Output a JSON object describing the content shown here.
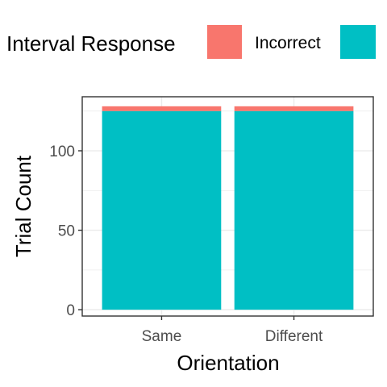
{
  "chart_data": {
    "type": "bar",
    "stacked": true,
    "categories": [
      "Same",
      "Different"
    ],
    "series": [
      {
        "name": "Incorrect",
        "values": [
          3,
          3
        ],
        "color": "#F8766D"
      },
      {
        "name": "",
        "values": [
          125,
          125
        ],
        "color": "#00BFC4"
      }
    ],
    "xlabel": "Orientation",
    "ylabel": "Trial Count",
    "ylim": [
      -4,
      134
    ],
    "yticks": [
      0,
      50,
      100
    ],
    "grid": true,
    "legend": {
      "title": "Interval Response",
      "placement": "top"
    }
  }
}
